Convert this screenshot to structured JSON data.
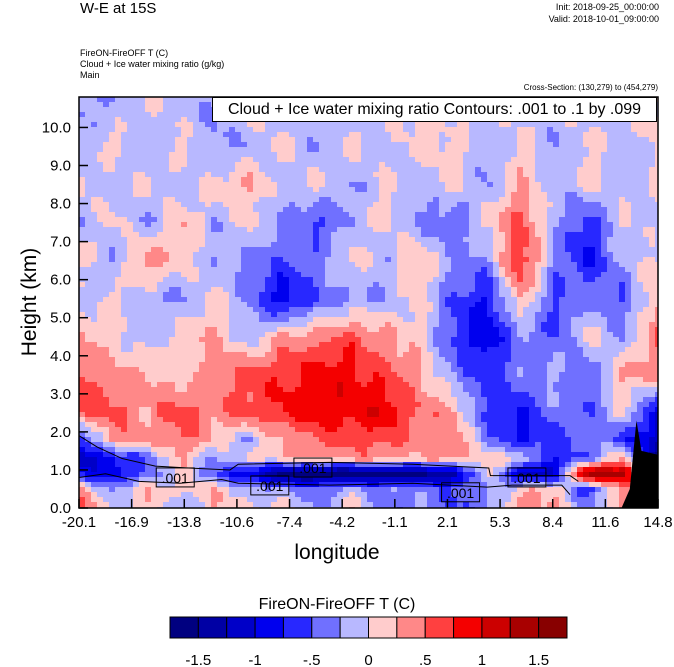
{
  "header": {
    "title": "W-E at 15S",
    "init": "Init: 2018-09-25_00:00:00",
    "valid": "Valid: 2018-10-01_09:00:00",
    "field1": "FireON-FireOFF T   (C)",
    "field2": "Cloud + Ice water mixing ratio   (g/kg)",
    "field3": "Main",
    "cross_section": "Cross-Section: (130,279) to (454,279)"
  },
  "chart_data": {
    "type": "heatmap",
    "title": "W-E at 15S",
    "xlabel": "longitude",
    "ylabel": "Height (km)",
    "xlim": [
      -20.1,
      14.8
    ],
    "ylim": [
      0,
      10.8
    ],
    "xticks": [
      "-20.1",
      "-16.9",
      "-13.8",
      "-10.6",
      "-7.4",
      "-4.2",
      "-1.1",
      "2.1",
      "5.3",
      "8.4",
      "11.6",
      "14.8"
    ],
    "yticks": [
      "0.0",
      "1.0",
      "2.0",
      "3.0",
      "4.0",
      "5.0",
      "6.0",
      "7.0",
      "8.0",
      "9.0",
      "10.0"
    ],
    "x": [
      -20.1,
      -18.05,
      -16.0,
      -13.9,
      -11.9,
      -9.8,
      -7.8,
      -5.7,
      -3.7,
      -1.6,
      0.4,
      2.5,
      4.5,
      6.5,
      8.6,
      10.6,
      12.7,
      14.8
    ],
    "heights": [
      10.8,
      9.5,
      8.5,
      7.5,
      6.5,
      5.5,
      4.5,
      3.5,
      2.5,
      1.8,
      1.3,
      0.9,
      0.5,
      0.0
    ],
    "values": [
      [
        -0.3,
        -0.3,
        0.1,
        -0.2,
        -0.2,
        0.1,
        -0.2,
        0.1,
        -0.2,
        0.1,
        0.1,
        -0.2,
        0.1,
        -0.2,
        0.1,
        -0.2,
        0.1,
        0.1
      ],
      [
        -0.2,
        0.1,
        -0.2,
        0.1,
        -0.3,
        -0.2,
        0.1,
        -0.3,
        0.1,
        -0.2,
        0.1,
        0.1,
        -0.2,
        0.1,
        -0.3,
        0.1,
        -0.2,
        0.1
      ],
      [
        0.1,
        -0.2,
        0.1,
        -0.2,
        0.1,
        0.3,
        -0.2,
        0.1,
        -0.3,
        0.1,
        -0.2,
        0.1,
        -0.3,
        0.3,
        -0.2,
        0.1,
        -0.2,
        0.1
      ],
      [
        -0.2,
        0.1,
        -0.3,
        0.3,
        -0.2,
        0.1,
        -0.3,
        -0.6,
        -0.2,
        0.1,
        -0.3,
        -0.5,
        0.1,
        0.6,
        -0.2,
        -0.7,
        0.1,
        -0.2
      ],
      [
        0.1,
        -0.3,
        0.4,
        0.1,
        -0.2,
        -0.3,
        -0.5,
        -0.3,
        0.1,
        -0.2,
        0.3,
        -0.3,
        -0.3,
        0.8,
        -0.3,
        -0.8,
        -0.2,
        0.1
      ],
      [
        -0.2,
        0.1,
        -0.2,
        -0.3,
        0.1,
        -0.3,
        -1.0,
        -0.5,
        -0.3,
        -0.2,
        0.1,
        -0.5,
        -0.8,
        0.3,
        -0.6,
        -0.3,
        -0.5,
        0.3
      ],
      [
        0.3,
        0.1,
        -0.2,
        0.1,
        0.3,
        -0.2,
        0.3,
        0.4,
        0.6,
        0.3,
        0.1,
        -0.6,
        -1.0,
        -0.3,
        -0.5,
        0.1,
        -0.3,
        0.5
      ],
      [
        0.6,
        0.3,
        0.3,
        0.1,
        0.4,
        0.6,
        0.7,
        0.9,
        0.9,
        0.6,
        0.3,
        -0.3,
        -0.7,
        -0.3,
        -0.2,
        -0.5,
        0.3,
        0.4
      ],
      [
        0.6,
        0.6,
        0.3,
        0.7,
        0.4,
        0.6,
        0.8,
        0.9,
        0.9,
        1.0,
        0.5,
        0.3,
        -0.6,
        -0.8,
        -0.3,
        -0.5,
        0.1,
        -1.0
      ],
      [
        -0.8,
        0.4,
        0.3,
        0.5,
        0.2,
        -0.2,
        0.3,
        0.5,
        0.6,
        0.6,
        0.3,
        0.4,
        -0.3,
        -0.8,
        -0.6,
        -0.3,
        -0.6,
        -1.2
      ],
      [
        -1.2,
        -0.8,
        -0.5,
        0.3,
        -0.3,
        0.1,
        0.2,
        0.3,
        0.3,
        0.4,
        0.2,
        0.4,
        0.1,
        0.1,
        -0.8,
        -0.4,
        0.3,
        -1.5
      ],
      [
        -0.8,
        -1.0,
        -0.4,
        0.1,
        -0.5,
        -1.0,
        -1.6,
        -1.8,
        -1.7,
        -1.7,
        -1.6,
        -1.4,
        0.2,
        -1.2,
        -1.0,
        1.5,
        1.4,
        -1.5
      ],
      [
        0.3,
        -0.3,
        0.2,
        0.1,
        0.2,
        -0.2,
        -0.3,
        -0.4,
        -0.2,
        -0.3,
        -0.3,
        -0.5,
        -0.3,
        0.1,
        0.2,
        -0.8,
        0.5,
        0.1
      ],
      [
        0.8,
        -0.2,
        0.2,
        -0.3,
        0.2,
        0.1,
        0.1,
        -0.3,
        0.2,
        -0.5,
        -0.3,
        -0.5,
        -0.4,
        0.5,
        0.2,
        -0.2,
        0.2,
        0.1
      ]
    ],
    "terrain": [
      [
        12.6,
        0
      ],
      [
        13.1,
        0.5
      ],
      [
        13.5,
        2.3
      ],
      [
        13.8,
        1.5
      ],
      [
        14.8,
        1.4
      ]
    ],
    "contour_legend": "Cloud + Ice water mixing ratio Contours: .001 to .1 by .099",
    "contour_lines": [
      [
        [
          -20.1,
          1.9
        ],
        [
          -19.0,
          1.6
        ],
        [
          -17.5,
          1.3
        ],
        [
          -15.5,
          1.1
        ],
        [
          -13.5,
          1.05
        ],
        [
          -11.0,
          1.0
        ],
        [
          -10.5,
          1.15
        ],
        [
          -5,
          1.2
        ],
        [
          0,
          1.15
        ],
        [
          4.6,
          1.05
        ],
        [
          4.7,
          0.85
        ],
        [
          9.5,
          0.85
        ],
        [
          10.0,
          0.7
        ]
      ],
      [
        [
          -20.1,
          0.8
        ],
        [
          -18.5,
          0.9
        ],
        [
          -16.5,
          0.7
        ],
        [
          -14,
          0.65
        ],
        [
          -11.5,
          0.75
        ],
        [
          -10.5,
          0.65
        ],
        [
          -5,
          0.6
        ],
        [
          0,
          0.65
        ],
        [
          4.5,
          0.55
        ],
        [
          6,
          0.6
        ],
        [
          9,
          0.6
        ],
        [
          9.5,
          0.35
        ]
      ]
    ],
    "contour_labels": [
      {
        "text": ".001",
        "x": -14.3,
        "y": 0.79
      },
      {
        "text": ".001",
        "x": -8.6,
        "y": 0.58
      },
      {
        "text": ".001",
        "x": -6.0,
        "y": 1.05
      },
      {
        "text": ".001",
        "x": 2.9,
        "y": 0.4
      },
      {
        "text": ".001",
        "x": 6.9,
        "y": 0.79
      }
    ],
    "colorbar": {
      "title": "FireON-FireOFF T  (C)",
      "levels": [
        -1.5,
        -1.25,
        -1,
        -0.75,
        -0.5,
        -0.25,
        0,
        0.25,
        0.5,
        0.75,
        1,
        1.25,
        1.5
      ],
      "labels": [
        "-1.5",
        "-1",
        "-.5",
        "0",
        ".5",
        "1",
        "1.5"
      ],
      "colors": [
        "#000080",
        "#0000a4",
        "#0000c8",
        "#0000ee",
        "#2828ff",
        "#7070ff",
        "#b8b8ff",
        "#ffcccc",
        "#ff8888",
        "#ff4040",
        "#f40000",
        "#cc0000",
        "#a80000",
        "#880000"
      ]
    }
  }
}
